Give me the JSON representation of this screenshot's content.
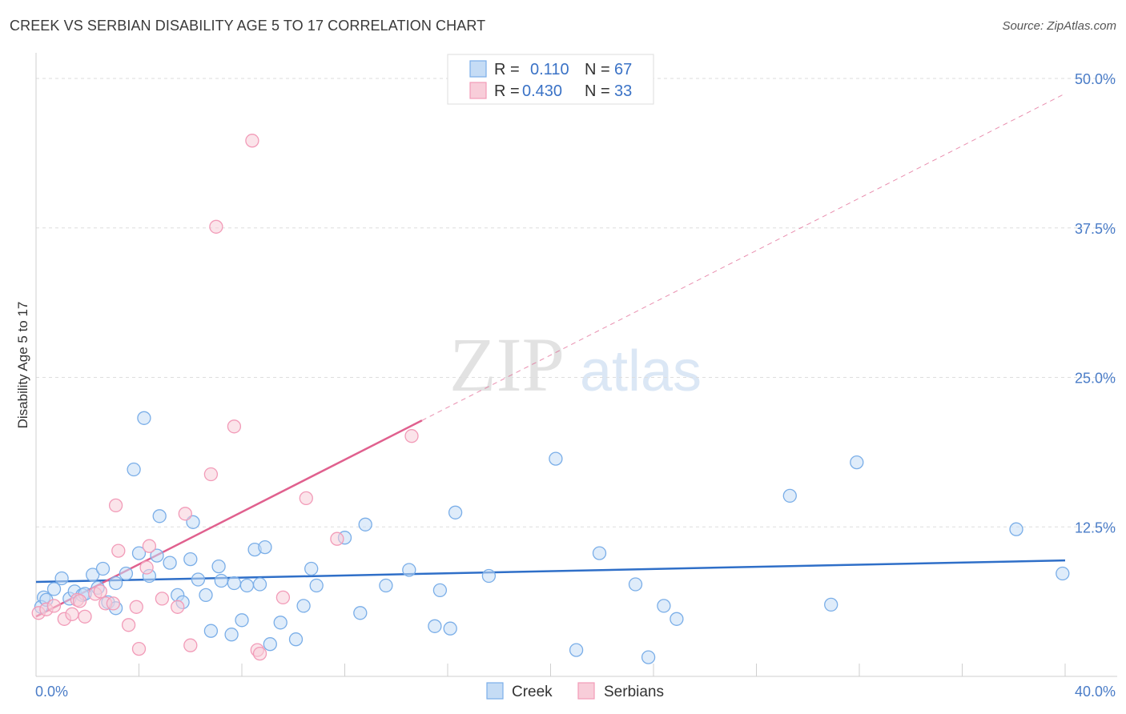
{
  "header": {
    "title": "CREEK VS SERBIAN DISABILITY AGE 5 TO 17 CORRELATION CHART",
    "source": "Source: ZipAtlas.com"
  },
  "watermark": {
    "zip": "ZIP",
    "atlas": "atlas"
  },
  "chart_data": {
    "type": "scatter",
    "title": "CREEK VS SERBIAN DISABILITY AGE 5 TO 17 CORRELATION CHART",
    "xlabel": "",
    "ylabel": "Disability Age 5 to 17",
    "xlim": [
      0,
      40
    ],
    "ylim": [
      0,
      51
    ],
    "x_tick_labels": [
      "0.0%",
      "40.0%"
    ],
    "y_ticks": [
      12.5,
      25.0,
      37.5,
      50.0
    ],
    "y_tick_labels": [
      "12.5%",
      "25.0%",
      "37.5%",
      "50.0%"
    ],
    "grid": true,
    "legend_position": "top-center",
    "legend": {
      "r_label": "R =",
      "n_label": "N =",
      "rows": [
        {
          "r": "0.110",
          "n": "67"
        },
        {
          "r": "0.430",
          "n": "33"
        }
      ]
    },
    "series": [
      {
        "name": "Creek",
        "color": "#7aaee8",
        "fill": "#c5dcf5",
        "line_color": "#2f6fc8",
        "trend": {
          "x0": 0,
          "y0": 7.9,
          "x1": 40,
          "y1": 9.7,
          "dashed_to": 40
        },
        "points": [
          [
            0.3,
            6.6
          ],
          [
            0.7,
            7.3
          ],
          [
            1.0,
            8.2
          ],
          [
            1.3,
            6.5
          ],
          [
            1.5,
            7.1
          ],
          [
            1.8,
            6.8
          ],
          [
            2.2,
            8.5
          ],
          [
            2.6,
            9.0
          ],
          [
            2.8,
            6.2
          ],
          [
            3.1,
            5.7
          ],
          [
            3.1,
            7.8
          ],
          [
            3.5,
            8.6
          ],
          [
            3.8,
            17.3
          ],
          [
            4.0,
            10.3
          ],
          [
            4.2,
            21.6
          ],
          [
            4.4,
            8.4
          ],
          [
            4.7,
            10.1
          ],
          [
            4.8,
            13.4
          ],
          [
            5.2,
            9.5
          ],
          [
            5.5,
            6.8
          ],
          [
            5.7,
            6.2
          ],
          [
            6.0,
            9.8
          ],
          [
            6.1,
            12.9
          ],
          [
            6.3,
            8.1
          ],
          [
            6.6,
            6.8
          ],
          [
            6.8,
            3.8
          ],
          [
            7.1,
            9.2
          ],
          [
            7.2,
            8.0
          ],
          [
            7.6,
            3.5
          ],
          [
            7.7,
            7.8
          ],
          [
            8.0,
            4.7
          ],
          [
            8.2,
            7.6
          ],
          [
            8.5,
            10.6
          ],
          [
            8.7,
            7.7
          ],
          [
            8.9,
            10.8
          ],
          [
            9.1,
            2.7
          ],
          [
            9.5,
            4.5
          ],
          [
            10.1,
            3.1
          ],
          [
            10.4,
            5.9
          ],
          [
            10.7,
            9.0
          ],
          [
            10.9,
            7.6
          ],
          [
            12.0,
            11.6
          ],
          [
            12.6,
            5.3
          ],
          [
            12.8,
            12.7
          ],
          [
            13.6,
            7.6
          ],
          [
            14.5,
            8.9
          ],
          [
            15.5,
            4.2
          ],
          [
            15.7,
            7.2
          ],
          [
            16.1,
            4.0
          ],
          [
            16.3,
            13.7
          ],
          [
            17.6,
            8.4
          ],
          [
            20.2,
            18.2
          ],
          [
            21.0,
            2.2
          ],
          [
            21.9,
            10.3
          ],
          [
            23.3,
            7.7
          ],
          [
            23.8,
            1.6
          ],
          [
            24.4,
            5.9
          ],
          [
            24.9,
            4.8
          ],
          [
            29.3,
            15.1
          ],
          [
            30.9,
            6.0
          ],
          [
            31.9,
            17.9
          ],
          [
            38.1,
            12.3
          ],
          [
            39.9,
            8.6
          ],
          [
            0.2,
            5.8
          ],
          [
            0.4,
            6.4
          ],
          [
            1.9,
            6.9
          ],
          [
            2.4,
            7.4
          ]
        ]
      },
      {
        "name": "Serbians",
        "color": "#f29bb8",
        "fill": "#f8cdd9",
        "line_color": "#e0608e",
        "trend": {
          "x0": 0,
          "y0": 5.0,
          "x1": 15,
          "y1": 21.4,
          "dashed_to": 40
        },
        "points": [
          [
            0.1,
            5.3
          ],
          [
            0.4,
            5.6
          ],
          [
            0.7,
            5.9
          ],
          [
            1.1,
            4.8
          ],
          [
            1.4,
            5.2
          ],
          [
            1.6,
            6.4
          ],
          [
            1.9,
            5.0
          ],
          [
            2.3,
            6.9
          ],
          [
            2.5,
            7.1
          ],
          [
            2.7,
            6.1
          ],
          [
            3.0,
            6.1
          ],
          [
            3.1,
            14.3
          ],
          [
            3.2,
            10.5
          ],
          [
            3.6,
            4.3
          ],
          [
            3.9,
            5.8
          ],
          [
            4.0,
            2.3
          ],
          [
            4.3,
            9.1
          ],
          [
            4.4,
            10.9
          ],
          [
            4.9,
            6.5
          ],
          [
            5.5,
            5.8
          ],
          [
            5.8,
            13.6
          ],
          [
            6.0,
            2.6
          ],
          [
            6.8,
            16.9
          ],
          [
            7.0,
            37.6
          ],
          [
            7.7,
            20.9
          ],
          [
            8.4,
            44.8
          ],
          [
            8.6,
            2.2
          ],
          [
            8.7,
            1.9
          ],
          [
            9.6,
            6.6
          ],
          [
            10.5,
            14.9
          ],
          [
            11.7,
            11.5
          ],
          [
            14.6,
            20.1
          ],
          [
            1.7,
            6.3
          ]
        ]
      }
    ]
  }
}
